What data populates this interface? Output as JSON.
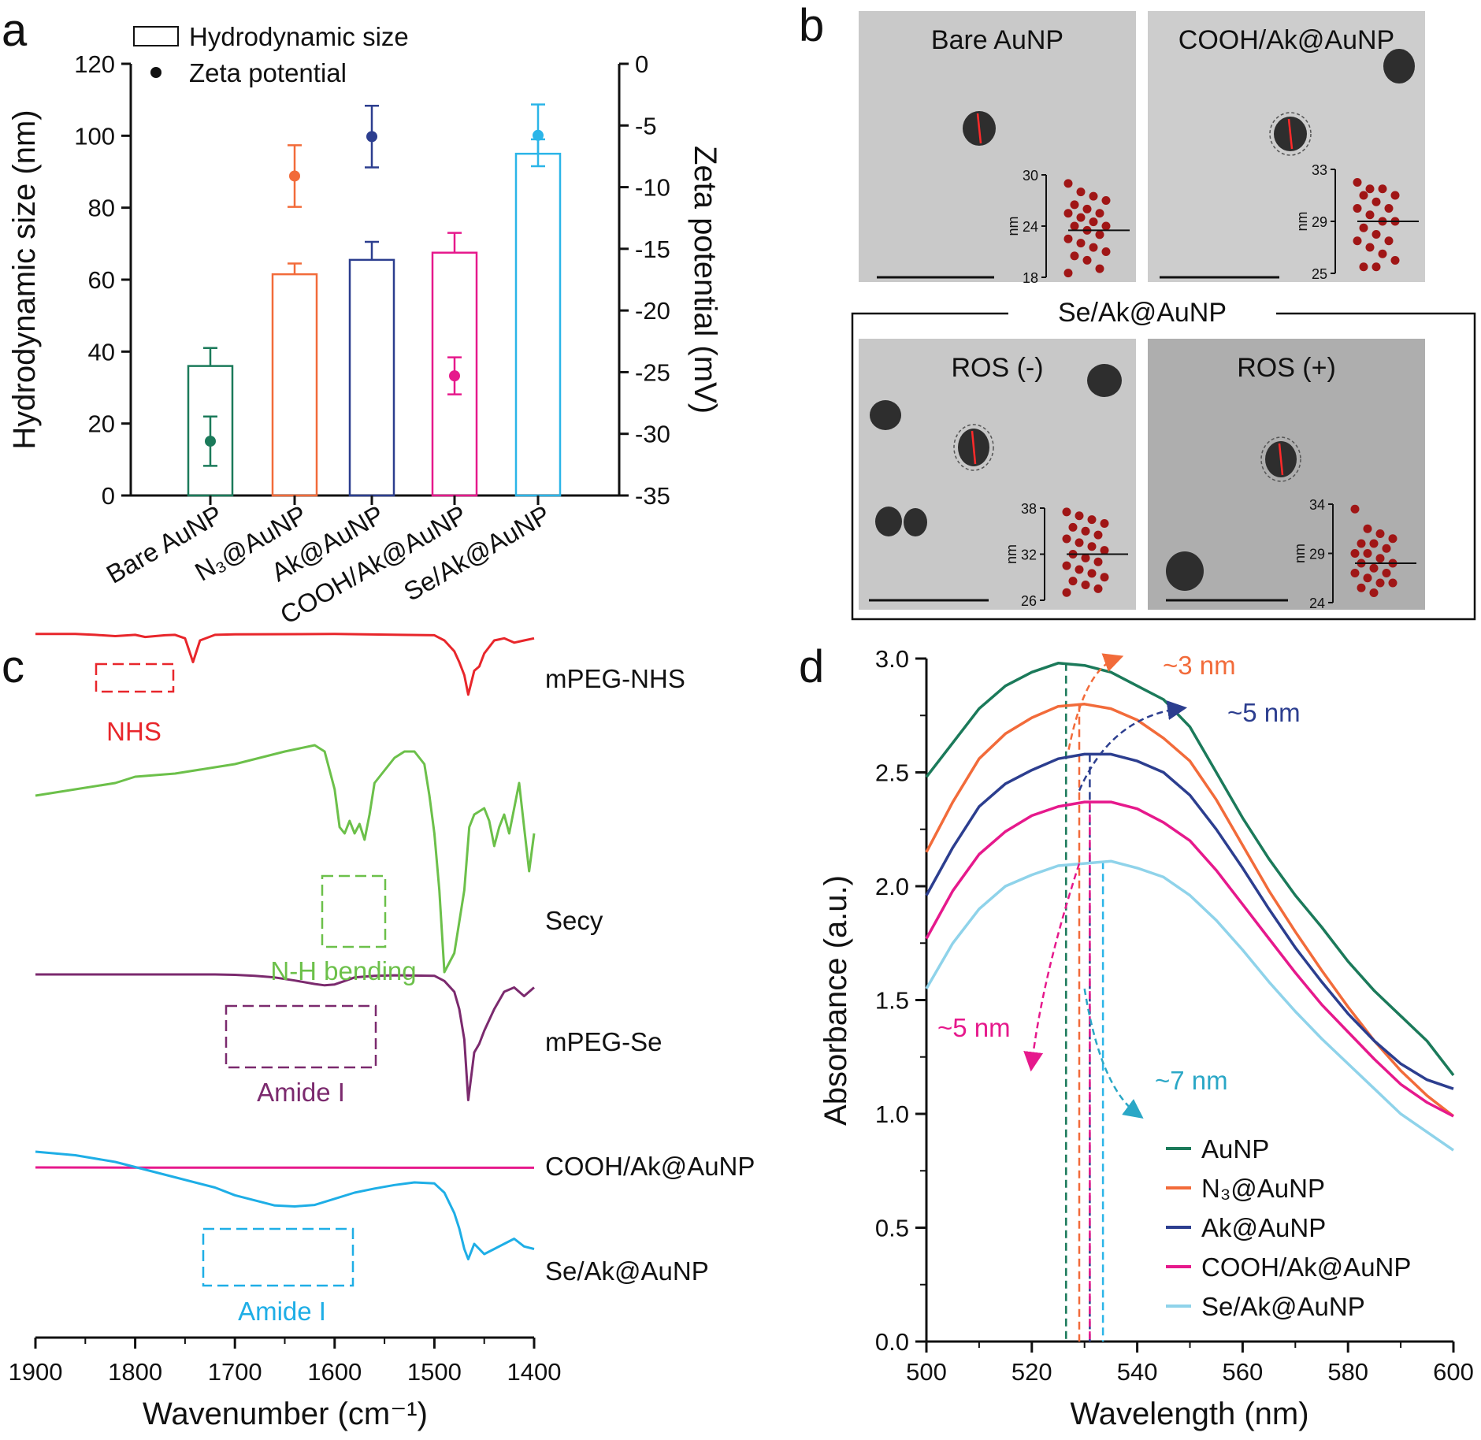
{
  "panels": {
    "a": {
      "letter": "a",
      "legend": {
        "bar_label": "Hydrodynamic size",
        "dot_label": "Zeta potential"
      },
      "y_left_title": "Hydrodynamic size (nm)",
      "y_right_title": "Zeta potential (mV)",
      "y_left_ticks": [
        "0",
        "20",
        "40",
        "60",
        "80",
        "100",
        "120"
      ],
      "y_right_ticks": [
        "0",
        "-5",
        "-10",
        "-15",
        "-20",
        "-25",
        "-30",
        "-35"
      ],
      "categories": [
        "Bare AuNP",
        "N₃@AuNP",
        "Ak@AuNP",
        "COOH/Ak@AuNP",
        "Se/Ak@AuNP"
      ],
      "colors": [
        "#1b7a5a",
        "#f26b3a",
        "#2c3e8f",
        "#e6198c",
        "#2bb5e8"
      ]
    },
    "b": {
      "letter": "b",
      "tem": [
        {
          "title": "Bare AuNP",
          "ticks": [
            "30",
            "24",
            "18"
          ],
          "unit": "nm"
        },
        {
          "title": "COOH/Ak@AuNP",
          "ticks": [
            "33",
            "29",
            "25"
          ],
          "unit": "nm"
        },
        {
          "title": "ROS (-)",
          "ticks": [
            "38",
            "32",
            "26"
          ],
          "unit": "nm"
        },
        {
          "title": "ROS (+)",
          "ticks": [
            "34",
            "29",
            "24"
          ],
          "unit": "nm"
        }
      ],
      "group_title": "Se/Ak@AuNP"
    },
    "c": {
      "letter": "c",
      "x_title": "Wavenumber (cm⁻¹)",
      "x_ticks": [
        "1900",
        "1800",
        "1700",
        "1600",
        "1500",
        "1400"
      ],
      "spectra": [
        {
          "name": "mPEG-NHS",
          "color": "#e8262b"
        },
        {
          "name": "Secy",
          "color": "#6cc04a"
        },
        {
          "name": "mPEG-Se",
          "color": "#7b2a6e"
        },
        {
          "name": "COOH/Ak@AuNP",
          "color": "#e6198c"
        },
        {
          "name": "Se/Ak@AuNP",
          "color": "#1eaee6"
        }
      ],
      "annotations": [
        "NHS",
        "N-H bending",
        "Amide I",
        "Amide I"
      ]
    },
    "d": {
      "letter": "d",
      "x_title": "Wavelength (nm)",
      "y_title": "Absorbance (a.u.)",
      "x_ticks": [
        "500",
        "520",
        "540",
        "560",
        "580",
        "600"
      ],
      "y_ticks": [
        "0.0",
        "0.5",
        "1.0",
        "1.5",
        "2.0",
        "2.5",
        "3.0"
      ],
      "legend": [
        "AuNP",
        "N₃@AuNP",
        "Ak@AuNP",
        "COOH/Ak@AuNP",
        "Se/Ak@AuNP"
      ],
      "colors": [
        "#1b7a5a",
        "#f26b3a",
        "#2c3e8f",
        "#e6198c",
        "#8fd3ea"
      ],
      "shift_labels": [
        "~3 nm",
        "~5 nm",
        "~5 nm",
        "~7 nm"
      ]
    }
  },
  "chart_data": [
    {
      "type": "bar",
      "title": "",
      "categories": [
        "Bare AuNP",
        "N₃@AuNP",
        "Ak@AuNP",
        "COOH/Ak@AuNP",
        "Se/Ak@AuNP"
      ],
      "series": [
        {
          "name": "Hydrodynamic size",
          "values": [
            36,
            61.5,
            65.5,
            67.5,
            95
          ],
          "errors": [
            5,
            3,
            5,
            5.5,
            4
          ]
        },
        {
          "name": "Zeta potential",
          "values": [
            -30.6,
            -9.1,
            -5.9,
            -25.3,
            -5.8
          ],
          "errors": [
            2,
            2.5,
            2.5,
            1.5,
            2.5
          ]
        }
      ],
      "ylabel": "Hydrodynamic size (nm)",
      "ylabel_right": "Zeta potential (mV)",
      "ylim": [
        0,
        120
      ],
      "ylim_right": [
        -35,
        0
      ]
    },
    {
      "type": "scatter",
      "title": "Bare AuNP",
      "ylabel": "nm",
      "ylim": [
        18,
        30
      ],
      "values": [
        29,
        28,
        27.5,
        27,
        26.5,
        26,
        25.5,
        25.5,
        25,
        24.5,
        24,
        24,
        23.5,
        23,
        22.5,
        22,
        21.5,
        21,
        20.5,
        20,
        19,
        18.5
      ],
      "mean": 23.5
    },
    {
      "type": "scatter",
      "title": "COOH/Ak@AuNP",
      "ylabel": "nm",
      "ylim": [
        25,
        33
      ],
      "values": [
        32,
        31.5,
        31.5,
        31,
        31,
        30.5,
        30,
        30,
        29.5,
        29,
        29,
        28.5,
        28,
        27.5,
        27.5,
        27,
        26.5,
        26,
        25.5,
        25.5
      ],
      "mean": 29
    },
    {
      "type": "scatter",
      "title": "ROS (-)",
      "ylabel": "nm",
      "ylim": [
        26,
        38
      ],
      "values": [
        37.5,
        37,
        36.5,
        36,
        35.5,
        35,
        34.5,
        34,
        33.5,
        33,
        32.5,
        32,
        31.5,
        31,
        30.5,
        30,
        29.5,
        29,
        28.5,
        28,
        27.5,
        27
      ],
      "mean": 32
    },
    {
      "type": "scatter",
      "title": "ROS (+)",
      "ylabel": "nm",
      "ylim": [
        24,
        34
      ],
      "values": [
        33.5,
        31.5,
        31,
        30.5,
        30,
        30,
        29.5,
        29,
        29,
        28.5,
        28,
        28,
        27.5,
        27,
        27,
        26.5,
        26,
        26,
        25.5,
        25
      ],
      "mean": 28
    },
    {
      "type": "line",
      "title": "",
      "xlabel": "Wavenumber (cm⁻¹)",
      "xlim": [
        1900,
        1400
      ],
      "series": [
        {
          "name": "mPEG-NHS",
          "x": [
            1900,
            1860,
            1840,
            1820,
            1800,
            1790,
            1770,
            1760,
            1750,
            1742,
            1735,
            1720,
            1700,
            1600,
            1500,
            1490,
            1480,
            1475,
            1470,
            1466,
            1460,
            1455,
            1450,
            1440,
            1430,
            1420,
            1410,
            1400
          ],
          "y": [
            0.95,
            0.95,
            0.93,
            0.9,
            0.93,
            0.88,
            0.92,
            0.93,
            0.85,
            0.3,
            0.8,
            0.93,
            0.94,
            0.95,
            0.92,
            0.8,
            0.55,
            0.3,
            0.0,
            -0.45,
            0.1,
            0.2,
            0.5,
            0.8,
            0.85,
            0.75,
            0.8,
            0.85
          ]
        },
        {
          "name": "Secy",
          "x": [
            1900,
            1860,
            1820,
            1800,
            1760,
            1720,
            1700,
            1650,
            1620,
            1610,
            1600,
            1595,
            1590,
            1585,
            1580,
            1575,
            1570,
            1565,
            1560,
            1550,
            1540,
            1530,
            1520,
            1510,
            1505,
            1500,
            1495,
            1490,
            1480,
            1470,
            1465,
            1460,
            1450,
            1445,
            1440,
            1435,
            1430,
            1425,
            1420,
            1415,
            1410,
            1405,
            1400
          ],
          "y": [
            0,
            0.1,
            0.2,
            0.3,
            0.35,
            0.45,
            0.5,
            0.7,
            0.8,
            0.7,
            0.1,
            -0.5,
            -0.6,
            -0.4,
            -0.6,
            -0.45,
            -0.7,
            -0.3,
            0.2,
            0.4,
            0.6,
            0.7,
            0.7,
            0.5,
            0.0,
            -0.6,
            -1.5,
            -2.8,
            -2.5,
            -1.5,
            -0.5,
            -0.3,
            -0.2,
            -0.4,
            -0.8,
            -0.5,
            -0.3,
            -0.6,
            -0.2,
            0.2,
            -0.5,
            -1.2,
            -0.6
          ]
        },
        {
          "name": "mPEG-Se",
          "x": [
            1900,
            1800,
            1720,
            1700,
            1680,
            1660,
            1640,
            1620,
            1610,
            1600,
            1590,
            1580,
            1560,
            1540,
            1500,
            1490,
            1480,
            1475,
            1470,
            1466,
            1460,
            1455,
            1450,
            1440,
            1430,
            1420,
            1410,
            1400
          ],
          "y": [
            1,
            1,
            1,
            0.99,
            0.97,
            0.93,
            0.86,
            0.78,
            0.75,
            0.77,
            0.85,
            0.93,
            0.97,
            0.98,
            0.97,
            0.85,
            0.6,
            0.2,
            -0.5,
            -1.9,
            -0.8,
            -0.6,
            -0.3,
            0.2,
            0.6,
            0.7,
            0.5,
            0.7
          ]
        },
        {
          "name": "COOH/Ak@AuNP",
          "x": [
            1900,
            1800,
            1700,
            1600,
            1500,
            1400
          ],
          "y": [
            0,
            -0.01,
            -0.01,
            -0.01,
            -0.02,
            -0.02
          ]
        },
        {
          "name": "Se/Ak@AuNP",
          "x": [
            1900,
            1860,
            1820,
            1800,
            1760,
            1720,
            1700,
            1680,
            1660,
            1640,
            1620,
            1600,
            1580,
            1560,
            1540,
            1520,
            1500,
            1490,
            1480,
            1475,
            1470,
            1466,
            1460,
            1450,
            1440,
            1430,
            1420,
            1410,
            1400
          ],
          "y": [
            1,
            0.93,
            0.8,
            0.7,
            0.5,
            0.3,
            0.15,
            0.05,
            -0.05,
            -0.07,
            -0.04,
            0.08,
            0.2,
            0.28,
            0.35,
            0.4,
            0.38,
            0.2,
            -0.2,
            -0.5,
            -0.9,
            -1.1,
            -0.8,
            -1.0,
            -0.9,
            -0.8,
            -0.7,
            -0.85,
            -0.9
          ]
        }
      ]
    },
    {
      "type": "line",
      "title": "",
      "xlabel": "Wavelength (nm)",
      "ylabel": "Absorbance (a.u.)",
      "xlim": [
        500,
        600
      ],
      "ylim": [
        0,
        3.0
      ],
      "series": [
        {
          "name": "AuNP",
          "peak": 526.5,
          "x": [
            500,
            505,
            510,
            515,
            520,
            525,
            530,
            535,
            540,
            545,
            550,
            555,
            560,
            565,
            570,
            575,
            580,
            585,
            590,
            595,
            600
          ],
          "y": [
            2.48,
            2.63,
            2.78,
            2.88,
            2.94,
            2.98,
            2.97,
            2.94,
            2.88,
            2.82,
            2.7,
            2.5,
            2.3,
            2.12,
            1.96,
            1.82,
            1.67,
            1.54,
            1.43,
            1.32,
            1.17
          ]
        },
        {
          "name": "N₃@AuNP",
          "peak": 529,
          "x": [
            500,
            505,
            510,
            515,
            520,
            525,
            530,
            535,
            540,
            545,
            550,
            555,
            560,
            565,
            570,
            575,
            580,
            585,
            590,
            595,
            600
          ],
          "y": [
            2.15,
            2.37,
            2.56,
            2.67,
            2.74,
            2.79,
            2.8,
            2.78,
            2.73,
            2.65,
            2.55,
            2.38,
            2.18,
            1.98,
            1.8,
            1.63,
            1.47,
            1.32,
            1.19,
            1.08,
            0.99
          ]
        },
        {
          "name": "Ak@AuNP",
          "peak": 531,
          "x": [
            500,
            505,
            510,
            515,
            520,
            525,
            530,
            535,
            540,
            545,
            550,
            555,
            560,
            565,
            570,
            575,
            580,
            585,
            590,
            595,
            600
          ],
          "y": [
            1.96,
            2.17,
            2.35,
            2.45,
            2.51,
            2.56,
            2.58,
            2.58,
            2.55,
            2.5,
            2.4,
            2.25,
            2.08,
            1.9,
            1.73,
            1.58,
            1.44,
            1.32,
            1.22,
            1.15,
            1.11
          ]
        },
        {
          "name": "COOH/Ak@AuNP",
          "peak": 531,
          "x": [
            500,
            505,
            510,
            515,
            520,
            525,
            530,
            535,
            540,
            545,
            550,
            555,
            560,
            565,
            570,
            575,
            580,
            585,
            590,
            595,
            600
          ],
          "y": [
            1.77,
            1.98,
            2.14,
            2.24,
            2.31,
            2.35,
            2.37,
            2.37,
            2.34,
            2.28,
            2.2,
            2.07,
            1.92,
            1.77,
            1.62,
            1.48,
            1.36,
            1.24,
            1.13,
            1.05,
            0.99
          ]
        },
        {
          "name": "Se/Ak@AuNP",
          "peak": 533.5,
          "x": [
            500,
            505,
            510,
            515,
            520,
            525,
            530,
            535,
            540,
            545,
            550,
            555,
            560,
            565,
            570,
            575,
            580,
            585,
            590,
            595,
            600
          ],
          "y": [
            1.55,
            1.75,
            1.9,
            2.0,
            2.05,
            2.09,
            2.1,
            2.11,
            2.08,
            2.04,
            1.96,
            1.85,
            1.72,
            1.58,
            1.45,
            1.33,
            1.22,
            1.11,
            1.0,
            0.92,
            0.84
          ]
        }
      ]
    }
  ]
}
